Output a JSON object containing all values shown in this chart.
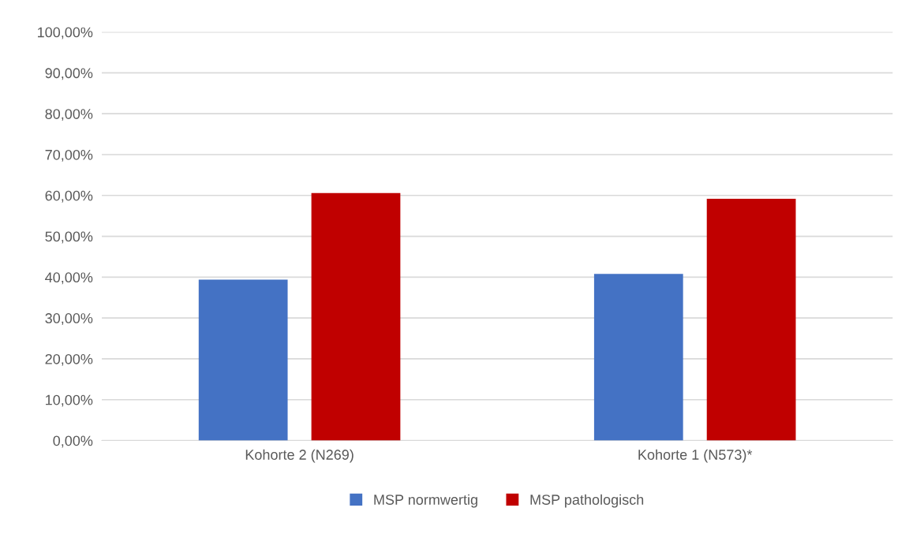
{
  "chart_data": {
    "type": "bar",
    "categories": [
      "Kohorte 2 (N269)",
      "Kohorte 1 (N573)*"
    ],
    "series": [
      {
        "name": "MSP normwertig",
        "color": "#4472c4",
        "values": [
          39.4,
          40.8
        ]
      },
      {
        "name": "MSP pathologisch",
        "color": "#c00000",
        "values": [
          60.6,
          59.2
        ]
      }
    ],
    "ylim": [
      0,
      100
    ],
    "yticks": [
      {
        "value": 0,
        "label": "0,00%"
      },
      {
        "value": 10,
        "label": "10,00%"
      },
      {
        "value": 20,
        "label": "20,00%"
      },
      {
        "value": 30,
        "label": "30,00%"
      },
      {
        "value": 40,
        "label": "40,00%"
      },
      {
        "value": 50,
        "label": "50,00%"
      },
      {
        "value": 60,
        "label": "60,00%"
      },
      {
        "value": 70,
        "label": "70,00%"
      },
      {
        "value": 80,
        "label": "80,00%"
      },
      {
        "value": 90,
        "label": "90,00%"
      },
      {
        "value": 100,
        "label": "100,00%"
      }
    ],
    "grid": "y",
    "legend": "bottom"
  }
}
